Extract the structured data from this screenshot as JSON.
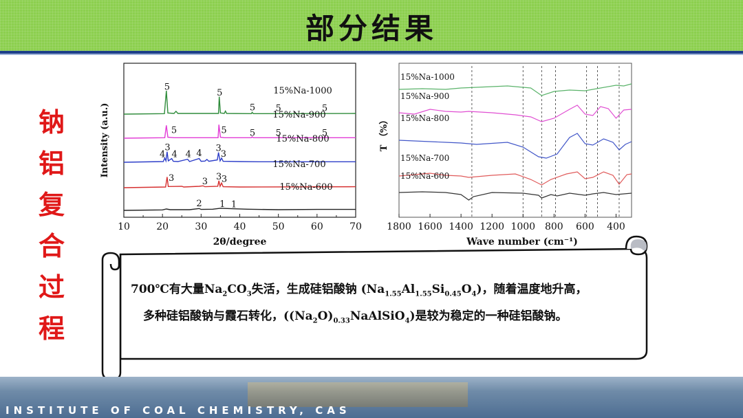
{
  "header": {
    "title": "部分结果"
  },
  "side_title": [
    "钠",
    "铝",
    "复",
    "合",
    "过",
    "程"
  ],
  "caption": {
    "line1": [
      {
        "t": "700℃有大量Na"
      },
      {
        "sub": "2"
      },
      {
        "t": "CO"
      },
      {
        "sub": "3"
      },
      {
        "t": "失活，生成硅铝酸钠 (Na"
      },
      {
        "sub": "1.55"
      },
      {
        "t": "Al"
      },
      {
        "sub": "1.55"
      },
      {
        "t": "Si"
      },
      {
        "sub": "0.45"
      },
      {
        "t": "O"
      },
      {
        "sub": "4"
      },
      {
        "t": ")，随着温度地升高，"
      }
    ],
    "line2": [
      {
        "t": "多种硅铝酸钠与霞石转化，((Na"
      },
      {
        "sub": "2"
      },
      {
        "t": "O)"
      },
      {
        "sub": "0.33"
      },
      {
        "t": "NaAlSiO"
      },
      {
        "sub": "4"
      },
      {
        "t": ")是较为稳定的一种硅铝酸钠。"
      }
    ]
  },
  "footer": {
    "text": "INSTITUTE OF COAL CHEMISTRY, CAS"
  },
  "chart_data": [
    {
      "type": "line",
      "xlabel": "2θ/degree",
      "ylabel": "Intensity (a.u.)",
      "xlim": [
        10,
        70
      ],
      "xticks": [
        10,
        20,
        30,
        40,
        50,
        60,
        70
      ],
      "series": [
        {
          "name": "15%Na-1000",
          "color": "#2e8b3a",
          "points": [
            [
              10,
              0
            ],
            [
              20.5,
              0.2
            ],
            [
              21.0,
              10
            ],
            [
              21.4,
              0.5
            ],
            [
              23,
              0.3
            ],
            [
              23.5,
              1.2
            ],
            [
              24,
              0.3
            ],
            [
              34.5,
              0.3
            ],
            [
              34.7,
              7.5
            ],
            [
              35.0,
              0.5
            ],
            [
              36,
              0.3
            ],
            [
              36.3,
              1.3
            ],
            [
              36.6,
              0.3
            ],
            [
              43,
              0.2
            ],
            [
              43.2,
              0.8
            ],
            [
              43.5,
              0.2
            ],
            [
              70,
              0.3
            ]
          ],
          "peak_labels": [
            {
              "x": 21.2,
              "y": 10.5,
              "t": "5"
            },
            {
              "x": 34.8,
              "y": 8.0,
              "t": "5"
            },
            {
              "x": 43.3,
              "y": 1.6,
              "t": "5"
            },
            {
              "x": 50,
              "y": 1.3,
              "t": "5"
            },
            {
              "x": 62,
              "y": 1.3,
              "t": "5"
            }
          ]
        },
        {
          "name": "15%Na-900",
          "color": "#e23cd6",
          "points": [
            [
              10,
              0
            ],
            [
              20.6,
              0.2
            ],
            [
              21.0,
              5.5
            ],
            [
              21.4,
              0.4
            ],
            [
              23,
              0.2
            ],
            [
              34.4,
              0.2
            ],
            [
              34.6,
              5.8
            ],
            [
              35.0,
              0.4
            ],
            [
              36,
              0.2
            ],
            [
              43,
              0.2
            ],
            [
              43.2,
              0.6
            ],
            [
              43.5,
              0.2
            ],
            [
              50,
              0.2
            ],
            [
              50.2,
              0.5
            ],
            [
              50.5,
              0.2
            ],
            [
              61.8,
              0.2
            ],
            [
              62.0,
              0.8
            ],
            [
              62.3,
              0.2
            ],
            [
              70,
              0.2
            ]
          ],
          "peak_labels": [
            {
              "x": 23.0,
              "y": 2.2,
              "t": "5"
            },
            {
              "x": 35.9,
              "y": 2.2,
              "t": "5"
            },
            {
              "x": 43.3,
              "y": 1.1,
              "t": "5"
            },
            {
              "x": 50,
              "y": 1.0,
              "t": "5"
            },
            {
              "x": 62,
              "y": 1.1,
              "t": "5"
            }
          ]
        },
        {
          "name": "15%Na-800",
          "color": "#2d3ec9",
          "points": [
            [
              10,
              0
            ],
            [
              20.2,
              0.3
            ],
            [
              20.6,
              1.8
            ],
            [
              20.9,
              0.6
            ],
            [
              21.2,
              4.5
            ],
            [
              21.5,
              0.6
            ],
            [
              22.4,
              1.6
            ],
            [
              22.8,
              0.4
            ],
            [
              24.0,
              0.3
            ],
            [
              26.5,
              1.3
            ],
            [
              27,
              0.3
            ],
            [
              29.5,
              1.6
            ],
            [
              30,
              0.4
            ],
            [
              31,
              0.5
            ],
            [
              31.5,
              1.2
            ],
            [
              32,
              0.4
            ],
            [
              34.2,
              1.0
            ],
            [
              34.5,
              4.2
            ],
            [
              34.9,
              0.6
            ],
            [
              35.3,
              1.8
            ],
            [
              35.7,
              0.4
            ],
            [
              40,
              0.3
            ],
            [
              45,
              0.2
            ],
            [
              70,
              0.2
            ]
          ],
          "peak_labels": [
            {
              "x": 20.0,
              "y": 2.2,
              "t": "4"
            },
            {
              "x": 21.3,
              "y": 5.1,
              "t": "3"
            },
            {
              "x": 23.1,
              "y": 2.2,
              "t": "4"
            },
            {
              "x": 26.7,
              "y": 2.2,
              "t": "4"
            },
            {
              "x": 29.5,
              "y": 2.6,
              "t": "4"
            },
            {
              "x": 34.5,
              "y": 4.8,
              "t": "3"
            },
            {
              "x": 35.8,
              "y": 2.4,
              "t": "3"
            }
          ]
        },
        {
          "name": "15%Na-700",
          "color": "#d63030",
          "points": [
            [
              10,
              0
            ],
            [
              20.8,
              0.3
            ],
            [
              21.2,
              4.6
            ],
            [
              21.5,
              0.5
            ],
            [
              25,
              0.6
            ],
            [
              25.5,
              0.3
            ],
            [
              29.5,
              0.6
            ],
            [
              30.5,
              0.8
            ],
            [
              31,
              0.4
            ],
            [
              34.3,
              0.6
            ],
            [
              34.6,
              3.0
            ],
            [
              34.9,
              0.6
            ],
            [
              35.3,
              2.0
            ],
            [
              35.7,
              0.4
            ],
            [
              40,
              0.3
            ],
            [
              70,
              0.4
            ]
          ],
          "peak_labels": [
            {
              "x": 22.3,
              "y": 3.0,
              "t": "3"
            },
            {
              "x": 31.0,
              "y": 1.5,
              "t": "3"
            },
            {
              "x": 34.6,
              "y": 3.5,
              "t": "3"
            },
            {
              "x": 36.0,
              "y": 2.5,
              "t": "3"
            }
          ]
        },
        {
          "name": "15%Na-600",
          "color": "#222222",
          "points": [
            [
              10,
              0
            ],
            [
              20,
              0.2
            ],
            [
              21,
              0.6
            ],
            [
              22,
              0.3
            ],
            [
              27,
              0.3
            ],
            [
              29.5,
              0.8
            ],
            [
              30,
              0.4
            ],
            [
              33,
              0.5
            ],
            [
              35,
              0.9
            ],
            [
              38,
              0.7
            ],
            [
              42,
              0.5
            ],
            [
              50,
              0.3
            ],
            [
              60,
              0.4
            ],
            [
              70,
              0.4
            ]
          ],
          "peak_labels": [
            {
              "x": 29.5,
              "y": 1.7,
              "t": "2"
            },
            {
              "x": 35.5,
              "y": 1.5,
              "t": "1"
            },
            {
              "x": 38.5,
              "y": 1.3,
              "t": "1"
            }
          ]
        }
      ]
    },
    {
      "type": "line",
      "xlabel": "Wave number (cm⁻¹)",
      "ylabel": "T （%）",
      "xlim": [
        1800,
        300
      ],
      "xticks": [
        1800,
        1600,
        1400,
        1200,
        1000,
        800,
        600,
        400
      ],
      "guides": [
        1330,
        1000,
        880,
        790,
        590,
        520,
        380
      ],
      "series": [
        {
          "name": "15%Na-1000",
          "color": "#5ab36a",
          "points": [
            [
              1800,
              0
            ],
            [
              1650,
              0.1
            ],
            [
              1500,
              0.0
            ],
            [
              1400,
              0.2
            ],
            [
              1300,
              0.3
            ],
            [
              1100,
              0.5
            ],
            [
              950,
              0.2
            ],
            [
              880,
              -0.9
            ],
            [
              800,
              -0.3
            ],
            [
              700,
              -0.1
            ],
            [
              600,
              -0.2
            ],
            [
              500,
              0.2
            ],
            [
              400,
              0.6
            ],
            [
              350,
              0.5
            ],
            [
              300,
              0.8
            ]
          ]
        },
        {
          "name": "15%Na-900",
          "color": "#e04ed2",
          "points": [
            [
              1800,
              0
            ],
            [
              1700,
              -0.2
            ],
            [
              1600,
              0.5
            ],
            [
              1500,
              0.2
            ],
            [
              1400,
              0.1
            ],
            [
              1350,
              0.2
            ],
            [
              1200,
              0.0
            ],
            [
              1050,
              -0.3
            ],
            [
              950,
              -0.6
            ],
            [
              880,
              -1.3
            ],
            [
              800,
              -0.8
            ],
            [
              700,
              0.5
            ],
            [
              650,
              1.1
            ],
            [
              600,
              -0.2
            ],
            [
              550,
              -0.4
            ],
            [
              500,
              0.9
            ],
            [
              450,
              0.6
            ],
            [
              400,
              -0.8
            ],
            [
              350,
              0.4
            ],
            [
              300,
              0.5
            ]
          ]
        },
        {
          "name": "15%Na-800",
          "color": "#4156c8",
          "points": [
            [
              1800,
              0
            ],
            [
              1700,
              -0.1
            ],
            [
              1600,
              -0.2
            ],
            [
              1500,
              -0.3
            ],
            [
              1400,
              -0.4
            ],
            [
              1300,
              -0.6
            ],
            [
              1100,
              -0.3
            ],
            [
              1000,
              -1.0
            ],
            [
              900,
              -2.4
            ],
            [
              850,
              -2.6
            ],
            [
              780,
              -2.0
            ],
            [
              700,
              0.4
            ],
            [
              650,
              1.0
            ],
            [
              600,
              -0.5
            ],
            [
              550,
              -0.7
            ],
            [
              480,
              0.2
            ],
            [
              420,
              -0.3
            ],
            [
              380,
              -1.4
            ],
            [
              340,
              -0.6
            ],
            [
              300,
              -0.2
            ]
          ]
        },
        {
          "name": "15%Na-700",
          "color": "#e05a5a",
          "points": [
            [
              1800,
              0
            ],
            [
              1700,
              0.2
            ],
            [
              1600,
              0.4
            ],
            [
              1500,
              0.1
            ],
            [
              1400,
              0.0
            ],
            [
              1350,
              -0.2
            ],
            [
              1200,
              0.1
            ],
            [
              1050,
              0.3
            ],
            [
              950,
              -0.5
            ],
            [
              880,
              -1.3
            ],
            [
              820,
              -0.5
            ],
            [
              720,
              0.3
            ],
            [
              650,
              0.6
            ],
            [
              600,
              -0.4
            ],
            [
              550,
              -0.2
            ],
            [
              480,
              0.6
            ],
            [
              420,
              0.1
            ],
            [
              380,
              -1.2
            ],
            [
              330,
              0.2
            ],
            [
              300,
              0.3
            ]
          ]
        },
        {
          "name": "15%Na-600",
          "color": "#333333",
          "points": [
            [
              1800,
              0
            ],
            [
              1650,
              0.1
            ],
            [
              1500,
              0.0
            ],
            [
              1400,
              -0.3
            ],
            [
              1350,
              -1.1
            ],
            [
              1320,
              -0.6
            ],
            [
              1200,
              0.0
            ],
            [
              1000,
              -0.1
            ],
            [
              900,
              -0.4
            ],
            [
              880,
              -0.8
            ],
            [
              820,
              -0.3
            ],
            [
              780,
              -0.5
            ],
            [
              700,
              -0.1
            ],
            [
              600,
              -0.4
            ],
            [
              550,
              -0.2
            ],
            [
              480,
              0.0
            ],
            [
              400,
              -0.3
            ],
            [
              300,
              -0.1
            ]
          ]
        }
      ]
    }
  ]
}
